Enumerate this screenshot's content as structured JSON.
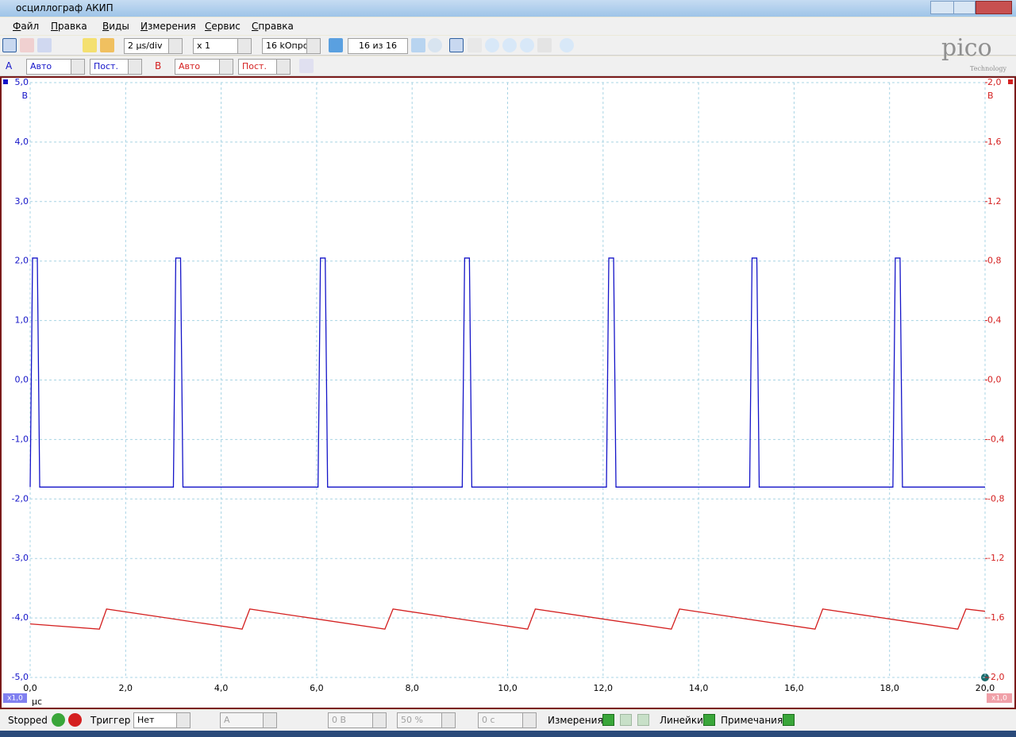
{
  "window": {
    "title": "осциллограф АКИП"
  },
  "menu": [
    "Файл",
    "Правка",
    "Виды",
    "Измерения",
    "Сервис",
    "Справка"
  ],
  "toolbar": {
    "timebase": "2 μs/div",
    "zoom": "x 1",
    "samples": "16 kОпро",
    "buffer": "16 из 16"
  },
  "channels": {
    "a": {
      "label": "A",
      "range": "Авто",
      "coupling": "Пост."
    },
    "b": {
      "label": "B",
      "range": "Авто",
      "coupling": "Пост."
    }
  },
  "logo": {
    "text": "pico",
    "sub": "Technology"
  },
  "chart_data": {
    "type": "line",
    "ylabel": "В",
    "y2label": "В",
    "xlabel": "µс",
    "annotations": [
      "x1,0",
      "x1,0"
    ],
    "xlim": [
      0,
      20
    ],
    "xticks": [
      {
        "value": 0,
        "label": "0,0"
      },
      {
        "value": 2,
        "label": "2,0"
      },
      {
        "value": 4,
        "label": "4,0"
      },
      {
        "value": 6,
        "label": "6,0"
      },
      {
        "value": 8,
        "label": "8,0"
      },
      {
        "value": 10,
        "label": "10,0"
      },
      {
        "value": 12,
        "label": "12,0"
      },
      {
        "value": 14,
        "label": "14,0"
      },
      {
        "value": 16,
        "label": "16,0"
      },
      {
        "value": 18,
        "label": "18,0"
      },
      {
        "value": 20,
        "label": "20,0"
      }
    ],
    "ylim": [
      -5,
      5
    ],
    "yticks": [
      {
        "value": 5,
        "label": "5,0"
      },
      {
        "value": 4,
        "label": "4,0"
      },
      {
        "value": 3,
        "label": "3,0"
      },
      {
        "value": 2,
        "label": "2,0"
      },
      {
        "value": 1,
        "label": "1,0"
      },
      {
        "value": 0,
        "label": "0,0"
      },
      {
        "value": -1,
        "label": "-1,0"
      },
      {
        "value": -2,
        "label": "-2,0"
      },
      {
        "value": -3,
        "label": "-3,0"
      },
      {
        "value": -4,
        "label": "-4,0"
      },
      {
        "value": -5,
        "label": "-5,0"
      }
    ],
    "y2lim": [
      -2,
      2
    ],
    "y2ticks": [
      {
        "value": 2,
        "label": "2,0"
      },
      {
        "value": 1.6,
        "label": "1,6"
      },
      {
        "value": 1.2,
        "label": "1,2"
      },
      {
        "value": 0.8,
        "label": "0,8"
      },
      {
        "value": 0.4,
        "label": "0,4"
      },
      {
        "value": 0,
        "label": "0,0"
      },
      {
        "value": -0.4,
        "label": "-0,4"
      },
      {
        "value": -0.8,
        "label": "-0,8"
      },
      {
        "value": -1.2,
        "label": "-1,2"
      },
      {
        "value": -1.6,
        "label": "-1,6"
      },
      {
        "value": -2,
        "label": "-2,0"
      }
    ],
    "grid": true,
    "series": [
      {
        "name": "A",
        "color": "#1414c8",
        "x": [
          0,
          0.05,
          0.15,
          0.2,
          3.0,
          3.05,
          3.15,
          3.2,
          6.03,
          6.08,
          6.18,
          6.23,
          9.05,
          9.1,
          9.2,
          9.25,
          12.07,
          12.12,
          12.22,
          12.27,
          15.07,
          15.12,
          15.22,
          15.27,
          18.07,
          18.12,
          18.22,
          18.27,
          20
        ],
        "values": [
          -1.8,
          2.05,
          2.05,
          -1.8,
          -1.8,
          2.05,
          2.05,
          -1.8,
          -1.8,
          2.05,
          2.05,
          -1.8,
          -1.8,
          2.05,
          2.05,
          -1.8,
          -1.8,
          2.05,
          2.05,
          -1.8,
          -1.8,
          2.05,
          2.05,
          -1.8,
          -1.8,
          2.05,
          2.05,
          -1.8,
          -1.8
        ]
      },
      {
        "name": "B",
        "color": "#d42020",
        "axis": "y2",
        "x": [
          0,
          1.45,
          1.6,
          4.44,
          4.6,
          7.43,
          7.6,
          10.42,
          10.58,
          13.43,
          13.6,
          16.44,
          16.6,
          19.43,
          19.6,
          20
        ],
        "values": [
          -1.64,
          -1.675,
          -1.54,
          -1.675,
          -1.54,
          -1.675,
          -1.54,
          -1.675,
          -1.54,
          -1.675,
          -1.54,
          -1.675,
          -1.54,
          -1.675,
          -1.54,
          -1.555
        ]
      }
    ]
  },
  "status": {
    "state": "Stopped",
    "trigger_label": "Триггер",
    "trigger": "Нет",
    "channel": "A",
    "level": "0 В",
    "percent": "50 %",
    "delay": "0 с",
    "measurements": "Измерения",
    "rulers": "Линейки",
    "notes": "Примечания"
  }
}
